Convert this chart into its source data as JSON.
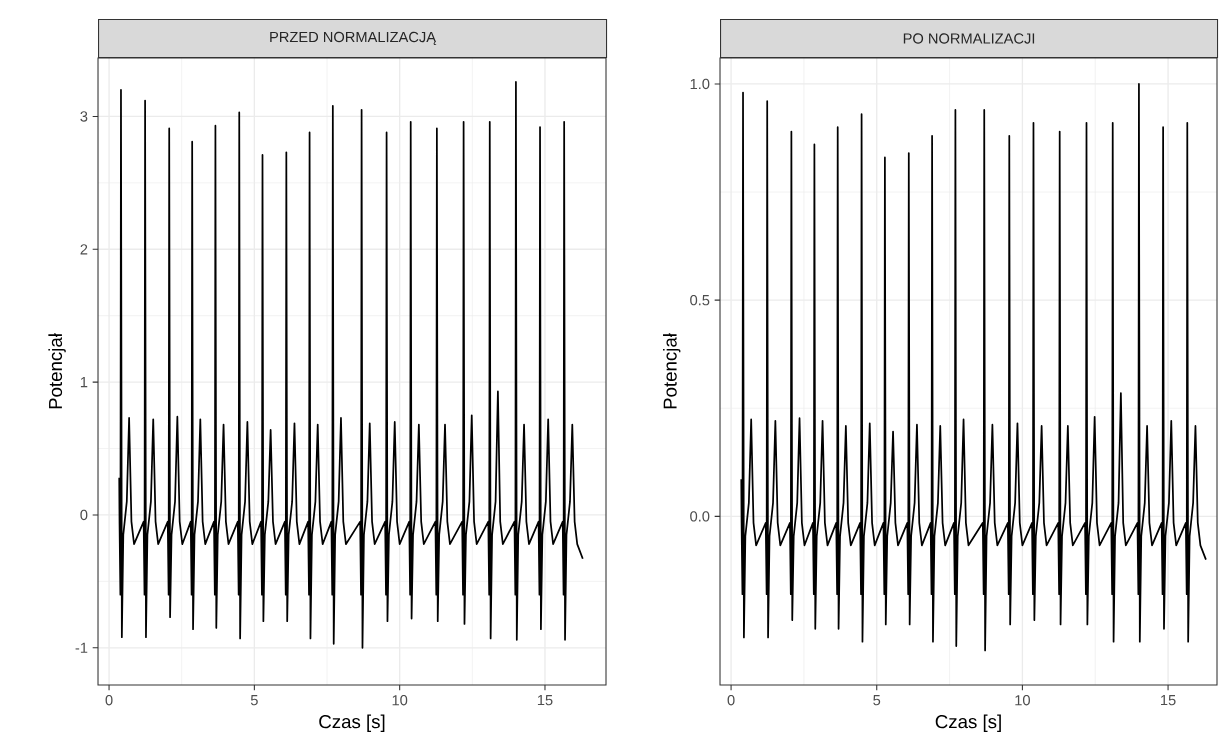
{
  "chart_data": [
    {
      "type": "line",
      "title": "PRZED NORMALIZACJĄ",
      "xlabel": "Czas [s]",
      "ylabel": "Potencjał",
      "color": "#000000",
      "grid": true,
      "xlim": [
        -0.38,
        17.1
      ],
      "ylim": [
        -1.28,
        3.44
      ],
      "xticks": [
        0,
        5,
        10,
        15
      ],
      "yticks": [
        -1,
        0,
        1,
        2,
        3
      ],
      "x": [
        0.35,
        0.36,
        0.39,
        0.41,
        0.44,
        0.49,
        0.61,
        0.69,
        0.77,
        0.86,
        1.19,
        1.22,
        1.24,
        1.27,
        1.32,
        1.44,
        1.52,
        1.6,
        1.69,
        2.02,
        2.05,
        2.07,
        2.1,
        2.15,
        2.27,
        2.35,
        2.43,
        2.52,
        2.81,
        2.84,
        2.86,
        2.89,
        2.94,
        3.06,
        3.14,
        3.22,
        3.31,
        3.61,
        3.64,
        3.66,
        3.69,
        3.74,
        3.86,
        3.94,
        4.02,
        4.11,
        4.43,
        4.46,
        4.48,
        4.51,
        4.56,
        4.68,
        4.76,
        4.84,
        4.93,
        5.23,
        5.26,
        5.28,
        5.31,
        5.36,
        5.48,
        5.56,
        5.64,
        5.73,
        6.05,
        6.08,
        6.1,
        6.13,
        6.18,
        6.3,
        6.38,
        6.46,
        6.55,
        6.85,
        6.88,
        6.9,
        6.93,
        6.98,
        7.1,
        7.18,
        7.26,
        7.35,
        7.65,
        7.68,
        7.7,
        7.73,
        7.78,
        7.9,
        7.98,
        8.06,
        8.15,
        8.64,
        8.67,
        8.69,
        8.72,
        8.77,
        8.89,
        8.97,
        9.05,
        9.14,
        9.5,
        9.53,
        9.55,
        9.58,
        9.63,
        9.75,
        9.83,
        9.91,
        10.0,
        10.33,
        10.36,
        10.38,
        10.41,
        10.46,
        10.58,
        10.66,
        10.74,
        10.83,
        11.23,
        11.26,
        11.28,
        11.31,
        11.36,
        11.48,
        11.56,
        11.64,
        11.73,
        12.15,
        12.18,
        12.2,
        12.23,
        12.28,
        12.4,
        12.48,
        12.56,
        12.65,
        13.05,
        13.08,
        13.1,
        13.13,
        13.18,
        13.3,
        13.38,
        13.46,
        13.55,
        13.95,
        13.98,
        14.0,
        14.03,
        14.08,
        14.2,
        14.28,
        14.36,
        14.45,
        14.78,
        14.81,
        14.83,
        14.86,
        14.91,
        15.03,
        15.11,
        15.19,
        15.28,
        15.61,
        15.64,
        15.66,
        15.69,
        15.74,
        15.86,
        15.94,
        16.02,
        16.11,
        16.3
      ],
      "values": [
        0.28,
        -0.05,
        -0.6,
        3.2,
        -0.92,
        -0.15,
        0.1,
        0.73,
        -0.05,
        -0.22,
        -0.05,
        -0.6,
        3.12,
        -0.92,
        -0.15,
        0.1,
        0.72,
        -0.05,
        -0.22,
        -0.05,
        -0.6,
        2.91,
        -0.77,
        -0.15,
        0.1,
        0.74,
        -0.05,
        -0.22,
        -0.05,
        -0.6,
        2.81,
        -0.86,
        -0.15,
        0.1,
        0.72,
        -0.05,
        -0.22,
        -0.05,
        -0.6,
        2.93,
        -0.85,
        -0.15,
        0.1,
        0.68,
        -0.05,
        -0.22,
        -0.05,
        -0.6,
        3.03,
        -0.93,
        -0.15,
        0.1,
        0.7,
        -0.05,
        -0.22,
        -0.05,
        -0.6,
        2.71,
        -0.8,
        -0.15,
        0.1,
        0.64,
        -0.05,
        -0.22,
        -0.05,
        -0.6,
        2.73,
        -0.8,
        -0.15,
        0.1,
        0.69,
        -0.05,
        -0.22,
        -0.05,
        -0.6,
        2.88,
        -0.93,
        -0.15,
        0.1,
        0.68,
        -0.05,
        -0.22,
        -0.05,
        -0.6,
        3.08,
        -0.97,
        -0.15,
        0.1,
        0.73,
        -0.05,
        -0.22,
        -0.05,
        -0.6,
        3.05,
        -1.0,
        -0.15,
        0.1,
        0.69,
        -0.05,
        -0.22,
        -0.05,
        -0.6,
        2.88,
        -0.8,
        -0.15,
        0.1,
        0.7,
        -0.05,
        -0.22,
        -0.05,
        -0.6,
        2.96,
        -0.78,
        -0.15,
        0.1,
        0.68,
        -0.05,
        -0.22,
        -0.05,
        -0.6,
        2.91,
        -0.8,
        -0.15,
        0.1,
        0.68,
        -0.05,
        -0.22,
        -0.05,
        -0.6,
        2.96,
        -0.82,
        -0.15,
        0.1,
        0.75,
        -0.05,
        -0.22,
        -0.05,
        -0.6,
        2.96,
        -0.93,
        -0.15,
        0.1,
        0.93,
        -0.05,
        -0.22,
        -0.05,
        -0.6,
        3.26,
        -0.94,
        -0.15,
        0.1,
        0.68,
        -0.05,
        -0.22,
        -0.05,
        -0.6,
        2.92,
        -0.86,
        -0.15,
        0.1,
        0.72,
        -0.05,
        -0.22,
        -0.05,
        -0.6,
        2.96,
        -0.94,
        -0.15,
        0.1,
        0.68,
        -0.05,
        -0.22,
        -0.33
      ]
    },
    {
      "type": "line",
      "title": "PO NORMALIZACJI",
      "xlabel": "Czas [s]",
      "ylabel": "Potencjał",
      "color": "#000000",
      "grid": true,
      "xlim": [
        -0.38,
        16.68
      ],
      "ylim": [
        -0.39,
        1.06
      ],
      "xticks": [
        0,
        5,
        10,
        15
      ],
      "yticks": [
        {
          "value": 0,
          "label": "0.0"
        },
        {
          "value": 0.5,
          "label": "0.5"
        },
        {
          "value": 1,
          "label": "1.0"
        }
      ],
      "x": [
        0.35,
        0.36,
        0.39,
        0.41,
        0.44,
        0.49,
        0.61,
        0.69,
        0.77,
        0.86,
        1.19,
        1.22,
        1.24,
        1.27,
        1.32,
        1.44,
        1.52,
        1.6,
        1.69,
        2.02,
        2.05,
        2.07,
        2.1,
        2.15,
        2.27,
        2.35,
        2.43,
        2.52,
        2.81,
        2.84,
        2.86,
        2.89,
        2.94,
        3.06,
        3.14,
        3.22,
        3.31,
        3.61,
        3.64,
        3.66,
        3.69,
        3.74,
        3.86,
        3.94,
        4.02,
        4.11,
        4.43,
        4.46,
        4.48,
        4.51,
        4.56,
        4.68,
        4.76,
        4.84,
        4.93,
        5.23,
        5.26,
        5.28,
        5.31,
        5.36,
        5.48,
        5.56,
        5.64,
        5.73,
        6.05,
        6.08,
        6.1,
        6.13,
        6.18,
        6.3,
        6.38,
        6.46,
        6.55,
        6.85,
        6.88,
        6.9,
        6.93,
        6.98,
        7.1,
        7.18,
        7.26,
        7.35,
        7.65,
        7.68,
        7.7,
        7.73,
        7.78,
        7.9,
        7.98,
        8.06,
        8.15,
        8.64,
        8.67,
        8.69,
        8.72,
        8.77,
        8.89,
        8.97,
        9.05,
        9.14,
        9.5,
        9.53,
        9.55,
        9.58,
        9.63,
        9.75,
        9.83,
        9.91,
        10.0,
        10.33,
        10.36,
        10.38,
        10.41,
        10.46,
        10.58,
        10.66,
        10.74,
        10.83,
        11.23,
        11.26,
        11.28,
        11.31,
        11.36,
        11.48,
        11.56,
        11.64,
        11.73,
        12.15,
        12.18,
        12.2,
        12.23,
        12.28,
        12.4,
        12.48,
        12.56,
        12.65,
        13.05,
        13.08,
        13.1,
        13.13,
        13.18,
        13.3,
        13.38,
        13.46,
        13.55,
        13.95,
        13.98,
        14.0,
        14.03,
        14.08,
        14.2,
        14.28,
        14.36,
        14.45,
        14.78,
        14.81,
        14.83,
        14.86,
        14.91,
        15.03,
        15.11,
        15.19,
        15.28,
        15.61,
        15.64,
        15.66,
        15.69,
        15.74,
        15.86,
        15.94,
        16.02,
        16.11,
        16.3
      ],
      "values": [
        0.086,
        -0.015,
        -0.18,
        0.98,
        -0.28,
        -0.046,
        0.031,
        0.224,
        -0.015,
        -0.067,
        -0.015,
        -0.18,
        0.96,
        -0.28,
        -0.046,
        0.031,
        0.221,
        -0.015,
        -0.067,
        -0.015,
        -0.18,
        0.89,
        -0.24,
        -0.046,
        0.031,
        0.227,
        -0.015,
        -0.067,
        -0.015,
        -0.18,
        0.86,
        -0.26,
        -0.046,
        0.031,
        0.221,
        -0.015,
        -0.067,
        -0.015,
        -0.18,
        0.9,
        -0.26,
        -0.046,
        0.031,
        0.209,
        -0.015,
        -0.067,
        -0.015,
        -0.18,
        0.93,
        -0.29,
        -0.046,
        0.031,
        0.215,
        -0.015,
        -0.067,
        -0.015,
        -0.18,
        0.83,
        -0.25,
        -0.046,
        0.031,
        0.196,
        -0.015,
        -0.067,
        -0.015,
        -0.18,
        0.84,
        -0.25,
        -0.046,
        0.031,
        0.212,
        -0.015,
        -0.067,
        -0.015,
        -0.18,
        0.88,
        -0.29,
        -0.046,
        0.031,
        0.209,
        -0.015,
        -0.067,
        -0.015,
        -0.18,
        0.94,
        -0.3,
        -0.046,
        0.031,
        0.224,
        -0.015,
        -0.067,
        -0.015,
        -0.18,
        0.94,
        -0.31,
        -0.046,
        0.031,
        0.212,
        -0.015,
        -0.067,
        -0.015,
        -0.18,
        0.88,
        -0.25,
        -0.046,
        0.031,
        0.215,
        -0.015,
        -0.067,
        -0.015,
        -0.18,
        0.91,
        -0.24,
        -0.046,
        0.031,
        0.209,
        -0.015,
        -0.067,
        -0.015,
        -0.18,
        0.89,
        -0.25,
        -0.046,
        0.031,
        0.209,
        -0.015,
        -0.067,
        -0.015,
        -0.18,
        0.91,
        -0.25,
        -0.046,
        0.031,
        0.23,
        -0.015,
        -0.067,
        -0.015,
        -0.18,
        0.91,
        -0.29,
        -0.046,
        0.031,
        0.285,
        -0.015,
        -0.067,
        -0.015,
        -0.18,
        1.0,
        -0.29,
        -0.046,
        0.031,
        0.209,
        -0.015,
        -0.067,
        -0.015,
        -0.18,
        0.9,
        -0.26,
        -0.046,
        0.031,
        0.221,
        -0.015,
        -0.067,
        -0.015,
        -0.18,
        0.91,
        -0.29,
        -0.046,
        0.031,
        0.209,
        -0.015,
        -0.067,
        -0.1
      ]
    }
  ]
}
